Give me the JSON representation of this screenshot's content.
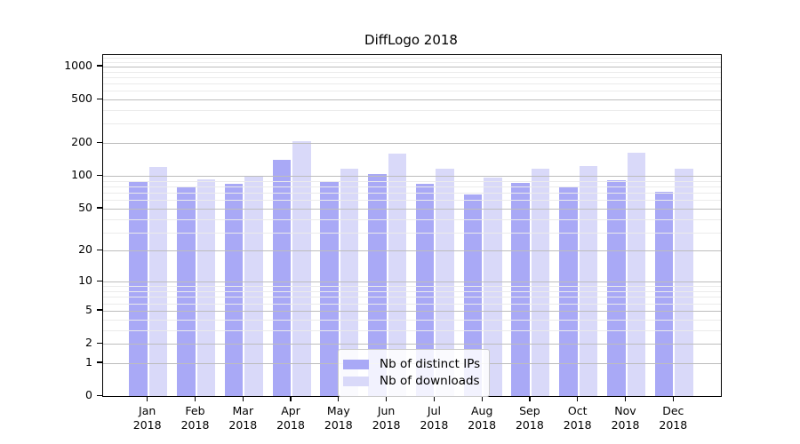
{
  "chart_data": {
    "type": "bar",
    "title": "DiffLogo 2018",
    "categories": [
      "Jan",
      "Feb",
      "Mar",
      "Apr",
      "May",
      "Jun",
      "Jul",
      "Aug",
      "Sep",
      "Oct",
      "Nov",
      "Dec"
    ],
    "category_year": "2018",
    "series": [
      {
        "name": "Nb of distinct IPs",
        "color": "#a9a9f6",
        "values": [
          89,
          79,
          84,
          140,
          90,
          105,
          85,
          68,
          86,
          78,
          91,
          72
        ]
      },
      {
        "name": "Nb of downloads",
        "color": "#d9d9f9",
        "values": [
          122,
          93,
          99,
          210,
          116,
          160,
          117,
          97,
          116,
          123,
          164,
          117
        ]
      }
    ],
    "y_axis": {
      "scale": "log1p",
      "ticks": [
        0,
        1,
        2,
        5,
        10,
        20,
        50,
        100,
        200,
        500,
        1000
      ],
      "minor_ticks": [
        3,
        4,
        6,
        7,
        8,
        9,
        30,
        40,
        60,
        70,
        80,
        90,
        300,
        400,
        600,
        700,
        800,
        900,
        1100,
        1200
      ],
      "ymin": 0,
      "ymax": 1270
    },
    "legend": {
      "position": "lower center",
      "entries": [
        "Nb of distinct IPs",
        "Nb of downloads"
      ]
    },
    "grid": {
      "major": true,
      "minor": true,
      "grid_above_bars": true
    }
  }
}
